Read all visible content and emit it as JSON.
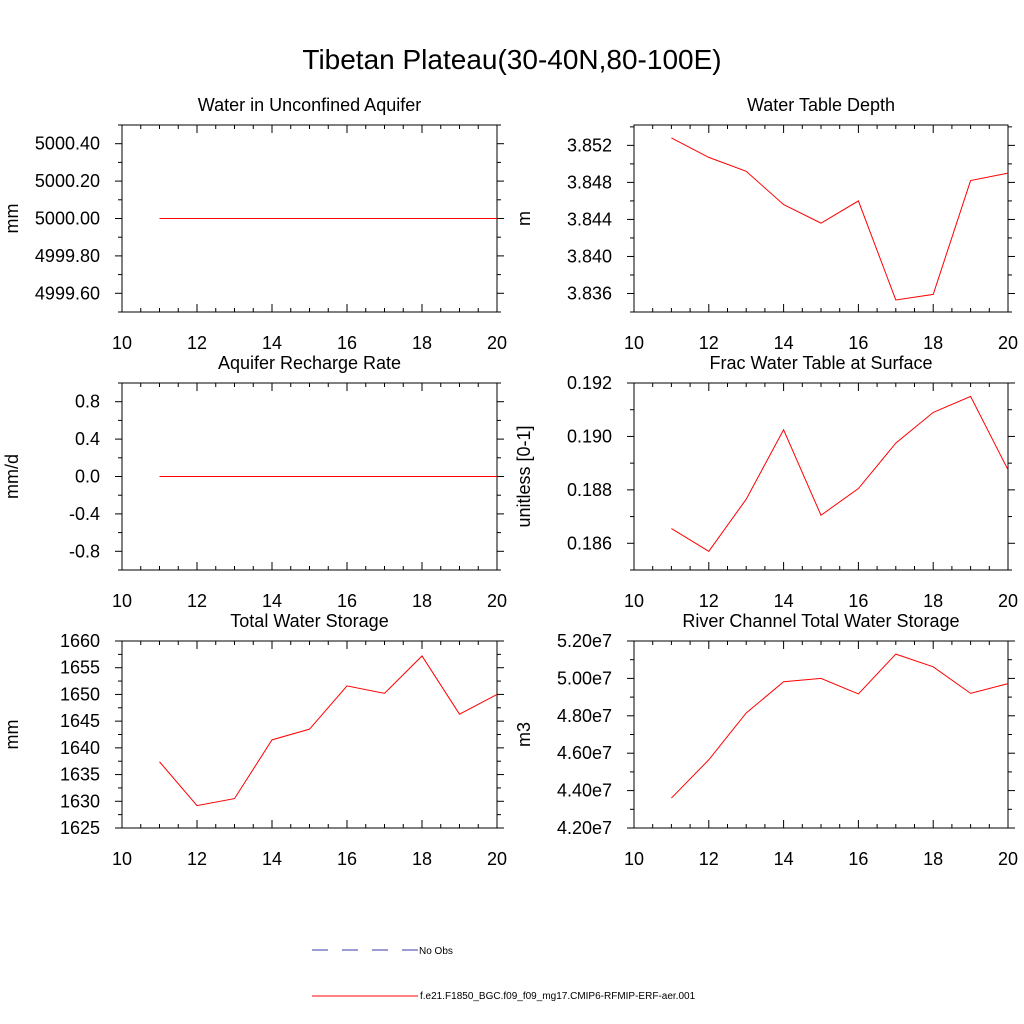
{
  "title": "Tibetan Plateau(30-40N,80-100E)",
  "legend": {
    "obs_label": "No Obs",
    "model_label": "f.e21.F1850_BGC.f09_f09_mg17.CMIP6-RFMIP-ERF-aer.001",
    "obs_color": "#3a3aa8",
    "model_color": "#ff0000"
  },
  "chart_data": [
    {
      "type": "line",
      "title": "Water in Unconfined Aquifer",
      "ylabel": "mm",
      "xlim": [
        10,
        20
      ],
      "ylim": [
        4999.5,
        5000.5
      ],
      "xticks": [
        10,
        12,
        14,
        16,
        18,
        20
      ],
      "yticks": [
        4999.6,
        4999.8,
        5000.0,
        5000.2,
        5000.4
      ],
      "ytick_labels": [
        "4999.60",
        "4999.80",
        "5000.00",
        "5000.20",
        "5000.40"
      ],
      "series": [
        {
          "x": [
            11,
            12,
            13,
            14,
            15,
            16,
            17,
            18,
            19,
            20
          ],
          "values": [
            5000,
            5000,
            5000,
            5000,
            5000,
            5000,
            5000,
            5000,
            5000,
            5000
          ]
        }
      ]
    },
    {
      "type": "line",
      "title": "Water Table Depth",
      "ylabel": "m",
      "xlim": [
        10,
        20
      ],
      "ylim": [
        3.834,
        3.8542
      ],
      "xticks": [
        10,
        12,
        14,
        16,
        18,
        20
      ],
      "yticks": [
        3.836,
        3.84,
        3.844,
        3.848,
        3.852
      ],
      "ytick_labels": [
        "3.836",
        "3.840",
        "3.844",
        "3.848",
        "3.852"
      ],
      "series": [
        {
          "x": [
            11,
            12,
            13,
            14,
            15,
            16,
            17,
            18,
            19,
            20
          ],
          "values": [
            3.8528,
            3.8507,
            3.8492,
            3.8456,
            3.8436,
            3.846,
            3.8353,
            3.8359,
            3.8482,
            3.849
          ]
        }
      ]
    },
    {
      "type": "line",
      "title": "Aquifer Recharge Rate",
      "ylabel": "mm/d",
      "xlim": [
        10,
        20
      ],
      "ylim": [
        -1.0,
        1.0
      ],
      "xticks": [
        10,
        12,
        14,
        16,
        18,
        20
      ],
      "yticks": [
        -0.8,
        -0.4,
        0.0,
        0.4,
        0.8
      ],
      "ytick_labels": [
        "-0.8",
        "-0.4",
        "0.0",
        "0.4",
        "0.8"
      ],
      "series": [
        {
          "x": [
            11,
            12,
            13,
            14,
            15,
            16,
            17,
            18,
            19,
            20
          ],
          "values": [
            0,
            0,
            0,
            0,
            0,
            0,
            0,
            0,
            0,
            0
          ]
        }
      ]
    },
    {
      "type": "line",
      "title": "Frac Water Table at Surface",
      "ylabel": "unitless [0-1]",
      "xlim": [
        10,
        20
      ],
      "ylim": [
        0.185,
        0.192
      ],
      "xticks": [
        10,
        12,
        14,
        16,
        18,
        20
      ],
      "yticks": [
        0.186,
        0.188,
        0.19,
        0.192
      ],
      "ytick_labels": [
        "0.186",
        "0.188",
        "0.190",
        "0.192"
      ],
      "series": [
        {
          "x": [
            11,
            12,
            13,
            14,
            15,
            16,
            17,
            18,
            19,
            20
          ],
          "values": [
            0.18655,
            0.1857,
            0.18765,
            0.19025,
            0.18705,
            0.18805,
            0.18975,
            0.1909,
            0.1915,
            0.18875
          ]
        }
      ]
    },
    {
      "type": "line",
      "title": "Total Water Storage",
      "ylabel": "mm",
      "xlim": [
        10,
        20
      ],
      "ylim": [
        1625,
        1660
      ],
      "xticks": [
        10,
        12,
        14,
        16,
        18,
        20
      ],
      "yticks": [
        1625,
        1630,
        1635,
        1640,
        1645,
        1650,
        1655,
        1660
      ],
      "ytick_labels": [
        "1625",
        "1630",
        "1635",
        "1640",
        "1645",
        "1650",
        "1655",
        "1660"
      ],
      "series": [
        {
          "x": [
            11,
            12,
            13,
            14,
            15,
            16,
            17,
            18,
            19,
            20
          ],
          "values": [
            1637.4,
            1629.2,
            1630.5,
            1641.5,
            1643.5,
            1651.6,
            1650.2,
            1657.2,
            1646.3,
            1650.0
          ]
        }
      ]
    },
    {
      "type": "line",
      "title": "River Channel Total Water Storage",
      "ylabel": "m3",
      "xlim": [
        10,
        20
      ],
      "ylim": [
        42000000,
        52000000
      ],
      "xticks": [
        10,
        12,
        14,
        16,
        18,
        20
      ],
      "yticks": [
        42000000,
        44000000,
        46000000,
        48000000,
        50000000,
        52000000
      ],
      "ytick_labels": [
        "4.20e7",
        "4.40e7",
        "4.60e7",
        "4.80e7",
        "5.00e7",
        "5.20e7"
      ],
      "series": [
        {
          "x": [
            11,
            12,
            13,
            14,
            15,
            16,
            17,
            18,
            19,
            20
          ],
          "values": [
            43600000,
            45650000,
            48150000,
            49820000,
            50000000,
            49170000,
            51300000,
            50620000,
            49200000,
            49720000
          ]
        }
      ]
    }
  ]
}
